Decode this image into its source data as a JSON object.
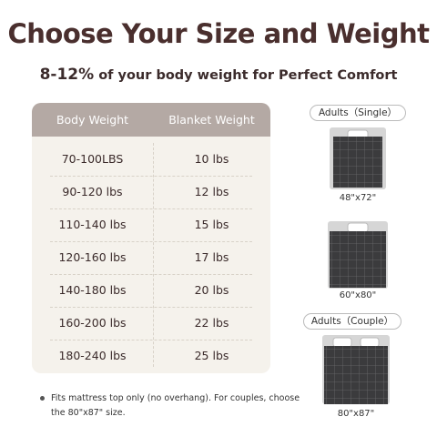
{
  "header": {
    "title": "Choose Your Size and Weight",
    "subtitle_highlight": "8-12%",
    "subtitle_rest": "of your body weight for Perfect Comfort"
  },
  "table": {
    "headers": [
      "Body Weight",
      "Blanket Weight"
    ],
    "rows": [
      [
        "70-100LBS",
        "10 lbs"
      ],
      [
        "90-120 lbs",
        "12 lbs"
      ],
      [
        "110-140 lbs",
        "15 lbs"
      ],
      [
        "120-160 lbs",
        "17 lbs"
      ],
      [
        "140-180 lbs",
        "20 lbs"
      ],
      [
        "160-200 lbs",
        "22 lbs"
      ],
      [
        "180-240 lbs",
        "25 lbs"
      ]
    ]
  },
  "right_panel": {
    "badges": [
      "Adults（Single）",
      "Adults（Couple）"
    ],
    "sizes": [
      "48\"x72\"",
      "60\"x80\"",
      "80\"x87\""
    ]
  },
  "footnote": "Fits mattress top only (no overhang). For couples, choose the 80\"x87\" size."
}
